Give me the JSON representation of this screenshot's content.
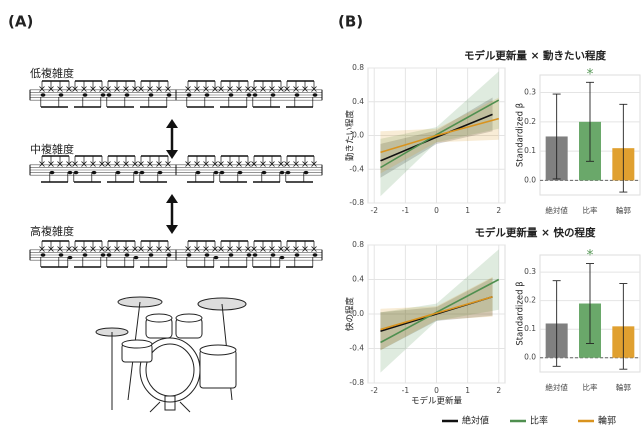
{
  "panel_a": {
    "label": "(A)",
    "rows": [
      "低複雑度",
      "中複雑度",
      "高複雑度"
    ]
  },
  "panel_b": {
    "label": "(B)"
  },
  "chart_data": [
    {
      "type": "line",
      "title": "モデル更新量 × 動きたい程度",
      "ylabel": "動きたい程度",
      "xlim": [
        -2.2,
        2.2
      ],
      "xticks": [
        -2,
        -1,
        0,
        1,
        2
      ],
      "ylim": [
        -0.8,
        0.8
      ],
      "yticks": [
        -0.8,
        -0.4,
        {
          "value": 0,
          "label": "0.0"
        },
        0.4,
        0.8
      ],
      "grid": true,
      "series": [
        {
          "name": "絶対値",
          "color": "#111111",
          "x": [
            -1.8,
            0,
            1.8
          ],
          "values": [
            -0.3,
            -0.02,
            0.25
          ],
          "lower": [
            -0.5,
            -0.1,
            0.05
          ],
          "upper": [
            -0.1,
            0.06,
            0.45
          ]
        },
        {
          "name": "比率",
          "color": "#4f8f4f",
          "x": [
            -1.8,
            0,
            2
          ],
          "values": [
            -0.38,
            0.01,
            0.42
          ],
          "lower": [
            -0.72,
            -0.08,
            0.08
          ],
          "upper": [
            -0.04,
            0.1,
            0.76
          ]
        },
        {
          "name": "輪郭",
          "color": "#d9931e",
          "x": [
            -1.8,
            0,
            2
          ],
          "values": [
            -0.2,
            0,
            0.2
          ],
          "lower": [
            -0.45,
            -0.08,
            -0.05
          ],
          "upper": [
            0.05,
            0.08,
            0.45
          ]
        }
      ]
    },
    {
      "type": "bar",
      "ylabel": "Standardized β",
      "categories": [
        "絶対値",
        "比率",
        "輪郭"
      ],
      "values": [
        0.15,
        0.2,
        0.11
      ],
      "errors": [
        0.145,
        0.135,
        0.15
      ],
      "colors": [
        "#808080",
        "#6aa86a",
        "#e0a030"
      ],
      "annotations": [
        null,
        "*",
        null
      ],
      "ylim": [
        -0.05,
        0.36
      ],
      "yticks": [
        {
          "value": 0,
          "label": "0.0"
        },
        0.1,
        0.2,
        0.3
      ],
      "grid": true
    },
    {
      "type": "line",
      "title": "モデル更新量 × 快の程度",
      "ylabel": "快の程度",
      "xlabel": "モデル更新量",
      "xlim": [
        -2.2,
        2.2
      ],
      "xticks": [
        -2,
        -1,
        0,
        1,
        2
      ],
      "ylim": [
        -0.8,
        0.8
      ],
      "yticks": [
        -0.8,
        -0.4,
        {
          "value": 0,
          "label": "0.0"
        },
        0.4,
        0.8
      ],
      "grid": true,
      "series": [
        {
          "name": "絶対値",
          "color": "#111111",
          "x": [
            -1.8,
            0,
            1.8
          ],
          "values": [
            -0.2,
            0,
            0.2
          ],
          "lower": [
            -0.42,
            -0.08,
            -0.02
          ],
          "upper": [
            0.02,
            0.08,
            0.42
          ]
        },
        {
          "name": "比率",
          "color": "#4f8f4f",
          "x": [
            -1.8,
            0,
            2
          ],
          "values": [
            -0.33,
            0.02,
            0.4
          ],
          "lower": [
            -0.68,
            -0.08,
            0.05
          ],
          "upper": [
            0.02,
            0.12,
            0.75
          ]
        },
        {
          "name": "輪郭",
          "color": "#d9931e",
          "x": [
            -1.8,
            0,
            1.8
          ],
          "values": [
            -0.18,
            0.01,
            0.2
          ],
          "lower": [
            -0.42,
            -0.07,
            -0.03
          ],
          "upper": [
            0.06,
            0.09,
            0.43
          ]
        }
      ]
    },
    {
      "type": "bar",
      "ylabel": "Standardized β",
      "categories": [
        "絶対値",
        "比率",
        "輪郭"
      ],
      "values": [
        0.12,
        0.19,
        0.11
      ],
      "errors": [
        0.15,
        0.14,
        0.15
      ],
      "colors": [
        "#808080",
        "#6aa86a",
        "#e0a030"
      ],
      "annotations": [
        null,
        "*",
        null
      ],
      "ylim": [
        -0.05,
        0.36
      ],
      "yticks": [
        {
          "value": 0,
          "label": "0.0"
        },
        0.1,
        0.2,
        0.3
      ],
      "grid": true
    }
  ]
}
